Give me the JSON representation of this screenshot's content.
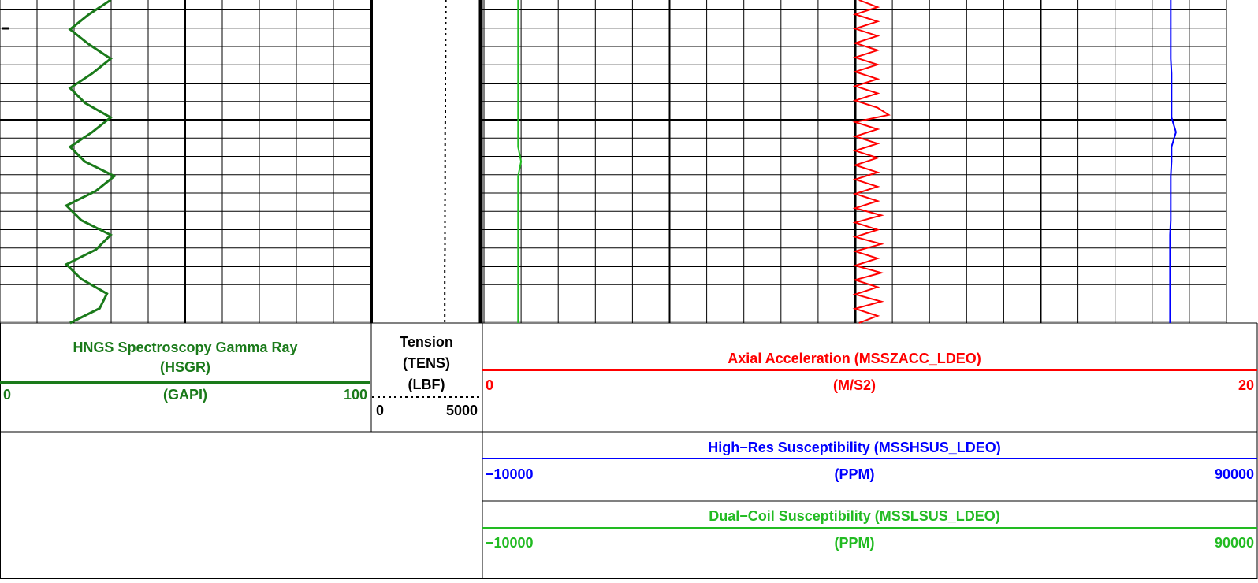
{
  "tracks": [
    {
      "title": "HNGS Spectroscopy Gamma Ray",
      "mnemonic": "(HSGR)",
      "unit": "(GAPI)",
      "scale": [
        0,
        100
      ],
      "color": "#1a7a1a",
      "values": [
        30,
        24,
        19,
        24,
        30,
        25,
        19,
        23,
        30,
        25,
        19,
        23,
        31,
        26,
        18,
        22,
        30,
        26,
        18,
        22,
        29,
        27,
        19
      ]
    },
    {
      "title": "Tension",
      "mnemonic": "(TENS)",
      "unit": "(LBF)",
      "scale": [
        0,
        5000
      ],
      "color": "#000000",
      "values": [
        3390,
        3390,
        3380,
        3380,
        3380,
        3370,
        3370,
        3370,
        3370,
        3360,
        3360,
        3360,
        3360,
        3360,
        3350,
        3350,
        3350,
        3350,
        3340,
        3340,
        3340,
        3340,
        3340
      ]
    },
    {
      "title": "Axial Acceleration (MSSZACC_LDEO)",
      "unit": "(M/S2)",
      "scale": [
        0,
        20
      ],
      "color": "#ff0000",
      "values": [
        10.1,
        10.6,
        10.0,
        10.6,
        10.0,
        10.6,
        10.0,
        10.6,
        10.0,
        10.6,
        10.0,
        10.6,
        10.0,
        10.6,
        10.0,
        10.6,
        10.9,
        10.0,
        10.6,
        10.0,
        10.6,
        10.0,
        10.6,
        10.0,
        10.6,
        10.0,
        10.6,
        10.0,
        10.6,
        10.0,
        10.7,
        10.0,
        10.6,
        10.0,
        10.7,
        10.0,
        10.6,
        10.0,
        10.7,
        10.0,
        10.6,
        10.0,
        10.7,
        10.0,
        10.6,
        10.1
      ]
    },
    {
      "title": "High−Res Susceptibility (MSSHSUS_LDEO)",
      "unit": "(PPM)",
      "scale": [
        {
          "value": -10000,
          "label": "−10000"
        },
        90000
      ],
      "color": "#0000ff",
      "values": [
        82500,
        82500,
        82500,
        82500,
        82500,
        82600,
        82600,
        82600,
        82600,
        83200,
        82600,
        82600,
        82500,
        82500,
        82500,
        82500,
        82400,
        82400,
        82400,
        82400,
        82400,
        82400,
        82400
      ]
    },
    {
      "title": "Dual−Coil Susceptibility (MSSLSUS_LDEO)",
      "unit": "(PPM)",
      "scale": [
        {
          "value": -10000,
          "label": "−10000"
        },
        90000
      ],
      "color": "#22bb22",
      "values": [
        -5400,
        -5400,
        -5400,
        -5400,
        -5400,
        -5400,
        -5400,
        -5400,
        -5400,
        -5400,
        -5400,
        -5000,
        -5400,
        -5400,
        -5400,
        -5400,
        -5400,
        -5400,
        -5400,
        -5400,
        -5400,
        -5400,
        -5400
      ]
    }
  ]
}
